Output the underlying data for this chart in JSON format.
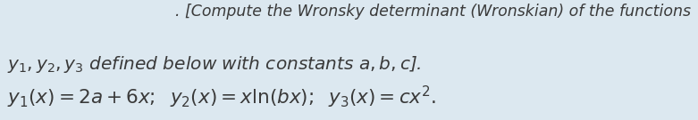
{
  "line1": ". [Compute the Wronsky determinant (Wronskian) of the functions",
  "line2_plain": " defined below with constants ",
  "line3": "$y_1(x) = 2a + 6x;\\;\\; y_2(x) = x\\ln(bx);\\;\\; y_3(x) = cx^2.$",
  "text_color": "#3a3a3a",
  "background_color": "#dce8f0",
  "fontsize_line1": 12.5,
  "fontsize_line2": 14.5,
  "fontsize_line3": 15.5,
  "fig_width": 7.81,
  "fig_height": 1.35,
  "dpi": 100
}
